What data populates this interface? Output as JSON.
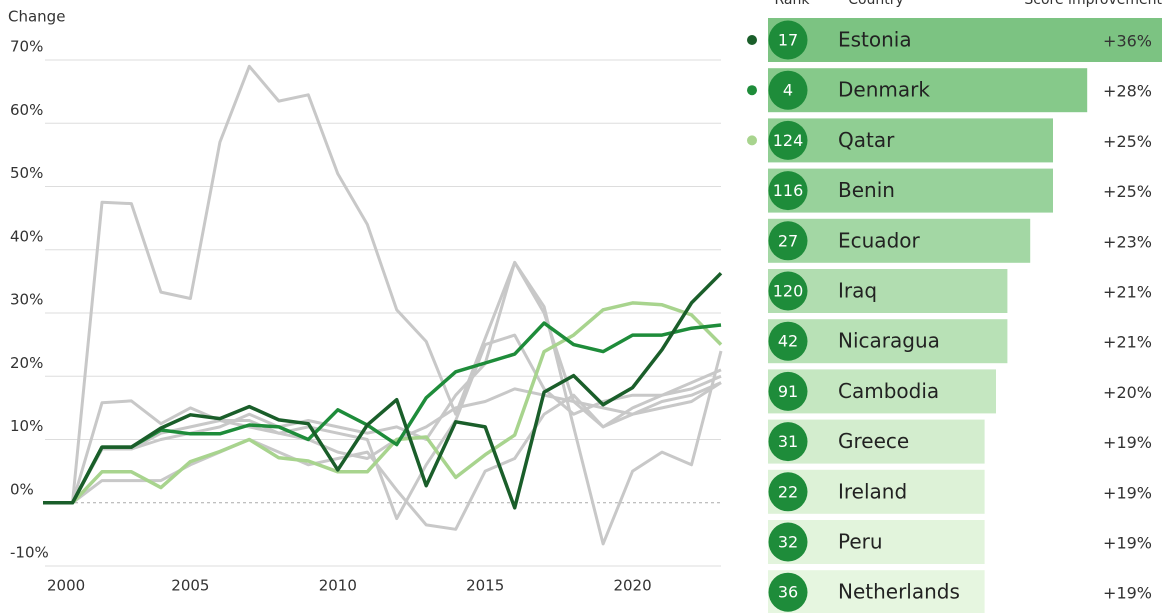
{
  "chart_data": [
    {
      "type": "line",
      "ylabel": "Change",
      "x": [
        2000,
        2001,
        2002,
        2003,
        2004,
        2005,
        2006,
        2007,
        2008,
        2009,
        2010,
        2011,
        2012,
        2013,
        2014,
        2015,
        2016,
        2017,
        2018,
        2019,
        2020,
        2021,
        2022,
        2023
      ],
      "xlim": [
        2000,
        2023
      ],
      "xticks": [
        2000,
        2005,
        2010,
        2015,
        2020
      ],
      "ylim": [
        -10,
        70
      ],
      "yticks": [
        {
          "value": -10,
          "label": "-10%"
        },
        {
          "value": 0,
          "label": "0%"
        },
        {
          "value": 10,
          "label": "10%"
        },
        {
          "value": 20,
          "label": "20%"
        },
        {
          "value": 30,
          "label": "30%"
        },
        {
          "value": 40,
          "label": "40%"
        },
        {
          "value": 50,
          "label": "50%"
        },
        {
          "value": 60,
          "label": "60%"
        },
        {
          "value": 70,
          "label": "70%"
        }
      ],
      "grid": true,
      "series": [
        {
          "color": "#c8c8c8",
          "values": [
            0,
            0,
            47.5,
            47.3,
            33.3,
            32.3,
            57,
            69,
            63.5,
            64.5,
            52,
            44,
            30.5,
            25.5,
            14,
            26,
            38,
            31,
            12,
            -6.5,
            5,
            8,
            6,
            24
          ]
        },
        {
          "color": "#c8c8c8",
          "values": [
            0,
            0,
            15.8,
            16.1,
            12.5,
            15,
            13,
            12,
            11,
            12,
            11,
            10,
            -2.5,
            6,
            13,
            25,
            26.5,
            18,
            14,
            16,
            17,
            17,
            18,
            20
          ]
        },
        {
          "color": "#c8c8c8",
          "values": [
            0,
            0,
            3.5,
            3.5,
            3.5,
            6,
            8,
            10,
            8,
            6,
            7,
            8,
            2,
            -3.5,
            -4.2,
            5,
            7,
            14,
            17,
            12,
            14,
            16,
            17,
            19
          ]
        },
        {
          "color": "#c8c8c8",
          "values": [
            0,
            0,
            8.5,
            8.5,
            10,
            11,
            12,
            14,
            12,
            13,
            12,
            11,
            12,
            10,
            17,
            22,
            38,
            30,
            16,
            12,
            15,
            17,
            19,
            21
          ]
        },
        {
          "color": "#c8c8c8",
          "values": [
            0,
            0,
            8.5,
            8.5,
            11,
            12,
            13,
            13,
            11,
            10,
            8,
            7,
            10,
            12,
            15,
            16,
            18,
            17,
            16,
            15,
            14,
            15,
            16,
            19
          ]
        },
        {
          "name": "Qatar",
          "color": "#a8d48e",
          "values": [
            0,
            0,
            4.9,
            4.9,
            2.4,
            6.5,
            8.1,
            10,
            7.1,
            6.6,
            4.9,
            4.9,
            10,
            10.4,
            4,
            7.6,
            10.7,
            23.9,
            26.5,
            30.5,
            31.6,
            31.3,
            29.7,
            25
          ]
        },
        {
          "name": "Denmark",
          "color": "#1e8c3a",
          "values": [
            0,
            0,
            8.8,
            8.8,
            11.5,
            10.9,
            10.9,
            12.3,
            12,
            10,
            14.7,
            12.3,
            9.2,
            16.6,
            20.7,
            22.1,
            23.5,
            28.4,
            25,
            23.9,
            26.5,
            26.5,
            27.6,
            28.1
          ]
        },
        {
          "name": "Estonia",
          "color": "#1a5e2a",
          "values": [
            0,
            0,
            8.8,
            8.8,
            11.8,
            13.9,
            13.3,
            15.2,
            13.1,
            12.5,
            5.2,
            12.3,
            16.3,
            2.7,
            12.8,
            12,
            -0.8,
            17.5,
            20.1,
            15.5,
            18.2,
            24.2,
            31.6,
            36.3
          ]
        }
      ]
    },
    {
      "type": "hbar",
      "columns": [
        "Rank",
        "Country",
        "Score improvement"
      ],
      "categories": [
        "Estonia",
        "Denmark",
        "Qatar",
        "Benin",
        "Ecuador",
        "Iraq",
        "Nicaragua",
        "Cambodia",
        "Greece",
        "Ireland",
        "Peru",
        "Netherlands"
      ],
      "ranks": [
        17,
        4,
        124,
        116,
        27,
        120,
        42,
        91,
        31,
        22,
        32,
        36
      ],
      "values": [
        36,
        28,
        25,
        25,
        23,
        21,
        21,
        20,
        19,
        19,
        19,
        19
      ],
      "value_labels": [
        "+36%",
        "+28%",
        "+25%",
        "+25%",
        "+23%",
        "+21%",
        "+21%",
        "+20%",
        "+19%",
        "+19%",
        "+19%",
        "+19%"
      ],
      "badge_color": "#1e8c3a",
      "colors": [
        "#7cc382",
        "#86c98a",
        "#90ce93",
        "#98d29b",
        "#a3d7a4",
        "#b1ddb0",
        "#b8e1b6",
        "#c5e7c1",
        "#d3edce",
        "#ddf2d7",
        "#e2f4dc",
        "#e6f6e0"
      ]
    }
  ]
}
